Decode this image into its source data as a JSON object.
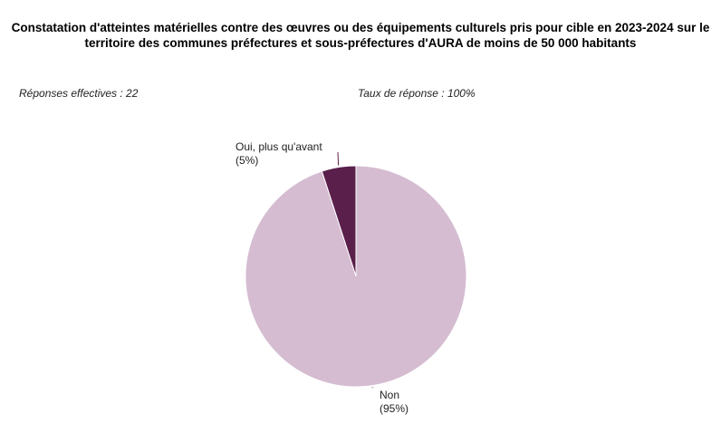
{
  "chart_data": {
    "type": "pie",
    "title": "Constatation d'atteintes matérielles contre des œuvres ou des équipements culturels pris pour cible en 2023-2024 sur le territoire des communes préfectures et sous-préfectures d'AURA de moins de 50 000 habitants",
    "responses_label": "Réponses effectives : 22",
    "rate_label": "Taux de réponse : 100%",
    "slices": [
      {
        "label": "Oui, plus qu'avant",
        "value_label": "(5%)",
        "value": 5,
        "color": "#5a1f4b"
      },
      {
        "label": "Non",
        "value_label": "(95%)",
        "value": 95,
        "color": "#d5bcd1"
      }
    ]
  }
}
